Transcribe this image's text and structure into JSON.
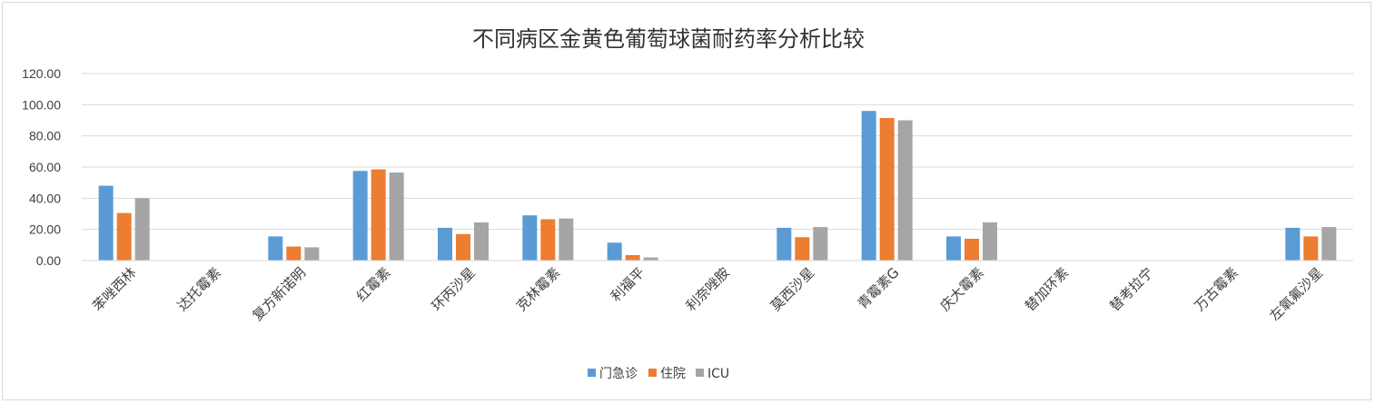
{
  "chart_data": {
    "type": "bar",
    "title": "不同病区金黄色葡萄球菌耐药率分析比较",
    "xlabel": "",
    "ylabel": "",
    "ylim": [
      0,
      120
    ],
    "yticks": [
      "0.00",
      "20.00",
      "40.00",
      "60.00",
      "80.00",
      "100.00",
      "120.00"
    ],
    "grid": true,
    "legend_position": "bottom",
    "categories": [
      "苯唑西林",
      "达托霉素",
      "复方新诺明",
      "红霉素",
      "环丙沙星",
      "克林霉素",
      "利福平",
      "利奈唑胺",
      "莫西沙星",
      "青霉素G",
      "庆大霉素",
      "替加环素",
      "替考拉宁",
      "万古霉素",
      "左氧氟沙星"
    ],
    "series": [
      {
        "name": "门急诊",
        "color": "#5b9bd5",
        "values": [
          48.0,
          0,
          15.5,
          57.5,
          21.0,
          29.0,
          11.5,
          0,
          21.0,
          96.0,
          15.5,
          0,
          0,
          0,
          21.0
        ]
      },
      {
        "name": "住院",
        "color": "#ed7d31",
        "values": [
          30.5,
          0,
          9.0,
          58.5,
          17.0,
          26.5,
          3.5,
          0,
          15.0,
          91.5,
          14.0,
          0,
          0,
          0,
          15.5
        ]
      },
      {
        "name": "ICU",
        "color": "#a5a5a5",
        "values": [
          40.0,
          0,
          8.5,
          56.5,
          24.5,
          27.0,
          2.0,
          0,
          21.5,
          90.0,
          24.5,
          0,
          0,
          0,
          21.5
        ]
      }
    ]
  }
}
